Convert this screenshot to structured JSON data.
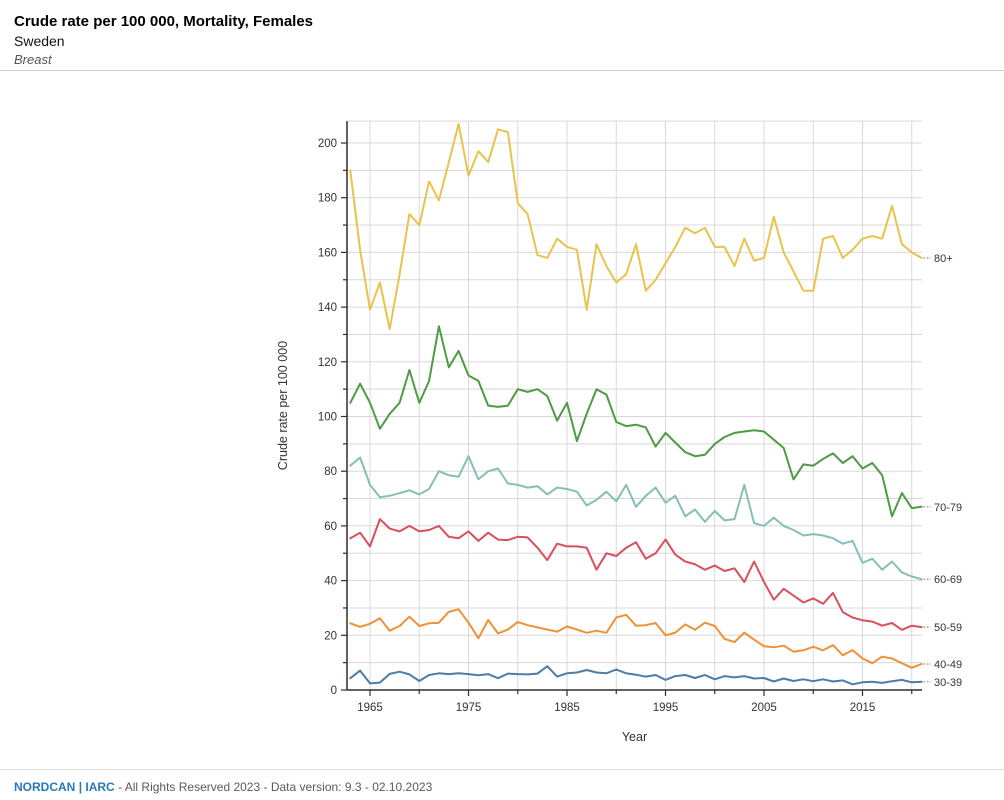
{
  "header": {
    "title": "Crude rate per 100 000, Mortality, Females",
    "region": "Sweden",
    "cancer_site": "Breast"
  },
  "footer": {
    "brand1": "NORDCAN",
    "pipe": "|",
    "brand2": "IARC",
    "text": " - All Rights Reserved 2023 - Data version: 9.3 - 02.10.2023"
  },
  "chart_data": {
    "type": "line",
    "title": "",
    "xlabel": "Year",
    "ylabel": "Crude rate per 100 000",
    "x_start": 1963,
    "x_end": 2021,
    "ylim": [
      0,
      208
    ],
    "y_tick_labels": [
      0,
      20,
      40,
      60,
      80,
      100,
      120,
      140,
      160,
      180,
      200
    ],
    "y_label_step": 20,
    "y_minor_step": 10,
    "x_tick_labels": [
      1965,
      1975,
      1985,
      1995,
      2005,
      2015
    ],
    "x_minor_step": 5,
    "grid": true,
    "legend_position": "right-end-labels",
    "colors": {
      "grid": "#d8d8d8",
      "axis": "#2f2f2f",
      "text": "#333333",
      "leader": "#8a8a8a"
    },
    "series": [
      {
        "name": "80+",
        "color": "#e9c34b",
        "values": [
          190,
          161,
          139,
          149,
          132,
          152,
          174,
          170,
          186,
          179,
          193,
          207,
          188,
          197,
          193,
          205,
          204,
          178,
          174,
          159,
          158,
          165,
          162,
          161,
          139,
          163,
          155,
          149,
          152,
          163,
          146,
          150,
          156,
          162,
          169,
          167,
          169,
          162,
          162,
          155,
          165,
          157,
          158,
          173,
          160,
          153,
          146,
          146,
          165,
          166,
          158,
          161,
          165,
          166,
          165,
          177,
          163,
          160,
          158
        ]
      },
      {
        "name": "70-79",
        "color": "#4e9b44",
        "values": [
          105,
          112,
          105,
          95.5,
          101,
          105,
          117,
          105,
          113,
          133,
          118,
          124,
          115,
          113,
          104,
          103.5,
          104,
          110,
          109,
          110,
          107.5,
          98.5,
          105,
          91,
          101,
          110,
          108,
          98,
          96.5,
          97,
          96,
          89,
          94,
          90.5,
          87,
          85.5,
          86,
          90,
          92.5,
          94,
          94.5,
          95,
          94.5,
          91.5,
          88.5,
          77,
          82.5,
          82,
          84.5,
          86.5,
          83,
          85.5,
          81,
          83,
          78.5,
          63.5,
          72,
          66.5,
          67
        ]
      },
      {
        "name": "60-69",
        "color": "#85bfb5",
        "values": [
          82,
          85,
          75,
          70.5,
          71,
          72,
          73,
          71.5,
          73.5,
          80,
          78.5,
          78,
          85.5,
          77,
          80,
          81,
          75.5,
          75,
          74,
          74.5,
          71.5,
          74,
          73.5,
          72.5,
          67.5,
          69.5,
          72.5,
          69,
          75,
          67,
          71,
          74,
          68.5,
          71,
          63.5,
          66,
          61.5,
          65.5,
          62,
          62.5,
          75,
          61,
          60,
          63,
          60,
          58.5,
          56.5,
          57,
          56.5,
          55.5,
          53.5,
          54.5,
          46.5,
          48,
          44,
          47,
          43,
          41.5,
          40.5
        ]
      },
      {
        "name": "50-59",
        "color": "#d94f5e",
        "values": [
          55.5,
          57.5,
          52.5,
          62.5,
          59,
          58,
          60,
          58,
          58.5,
          60,
          56,
          55.5,
          58,
          54.5,
          57.5,
          55,
          54.8,
          56,
          55.8,
          52,
          47.5,
          53.5,
          52.5,
          52.5,
          52,
          44,
          50,
          49,
          52,
          54,
          48,
          50,
          55,
          49.5,
          47,
          46,
          44,
          45.5,
          43.5,
          44.5,
          39.5,
          47,
          39.5,
          33,
          37,
          34.5,
          32,
          33.5,
          31.5,
          35.5,
          28.5,
          26.5,
          25.5,
          25,
          23.5,
          24.5,
          22,
          23.5,
          23
        ]
      },
      {
        "name": "40-49",
        "color": "#ef9137",
        "values": [
          24.4,
          23.1,
          24.2,
          26.2,
          21.7,
          23.4,
          26.8,
          23.4,
          24.4,
          24.6,
          28.6,
          29.5,
          24.6,
          18.9,
          25.6,
          20.7,
          22.1,
          24.9,
          23.7,
          22.9,
          22.1,
          21.3,
          23.2,
          22.1,
          20.9,
          21.7,
          20.9,
          26.5,
          27.5,
          23.5,
          23.7,
          24.5,
          20,
          21,
          24,
          22,
          24.6,
          23.4,
          18.7,
          17.5,
          21,
          18.4,
          16,
          15.6,
          16.2,
          14,
          14.5,
          15.8,
          14.5,
          16.4,
          12.7,
          14.6,
          11.5,
          9.8,
          12.2,
          11.5,
          9.8,
          8.1,
          9.5
        ]
      },
      {
        "name": "30-39",
        "color": "#4e7ca5",
        "values": [
          4.3,
          7.1,
          2.4,
          2.7,
          5.9,
          6.7,
          5.7,
          3.3,
          5.5,
          6.1,
          5.8,
          6.1,
          5.8,
          5.4,
          5.8,
          4.3,
          6,
          5.8,
          5.7,
          6,
          8.7,
          4.9,
          6.1,
          6.4,
          7.3,
          6.4,
          6.1,
          7.5,
          6.1,
          5.6,
          4.9,
          5.5,
          3.7,
          5.1,
          5.5,
          4.4,
          5.5,
          3.9,
          5.1,
          4.6,
          5.1,
          4.2,
          4.4,
          3.1,
          4.2,
          3.3,
          3.9,
          3.2,
          3.9,
          3.1,
          3.5,
          2.1,
          2.8,
          3,
          2.6,
          3.2,
          3.7,
          2.8,
          3
        ]
      }
    ]
  }
}
